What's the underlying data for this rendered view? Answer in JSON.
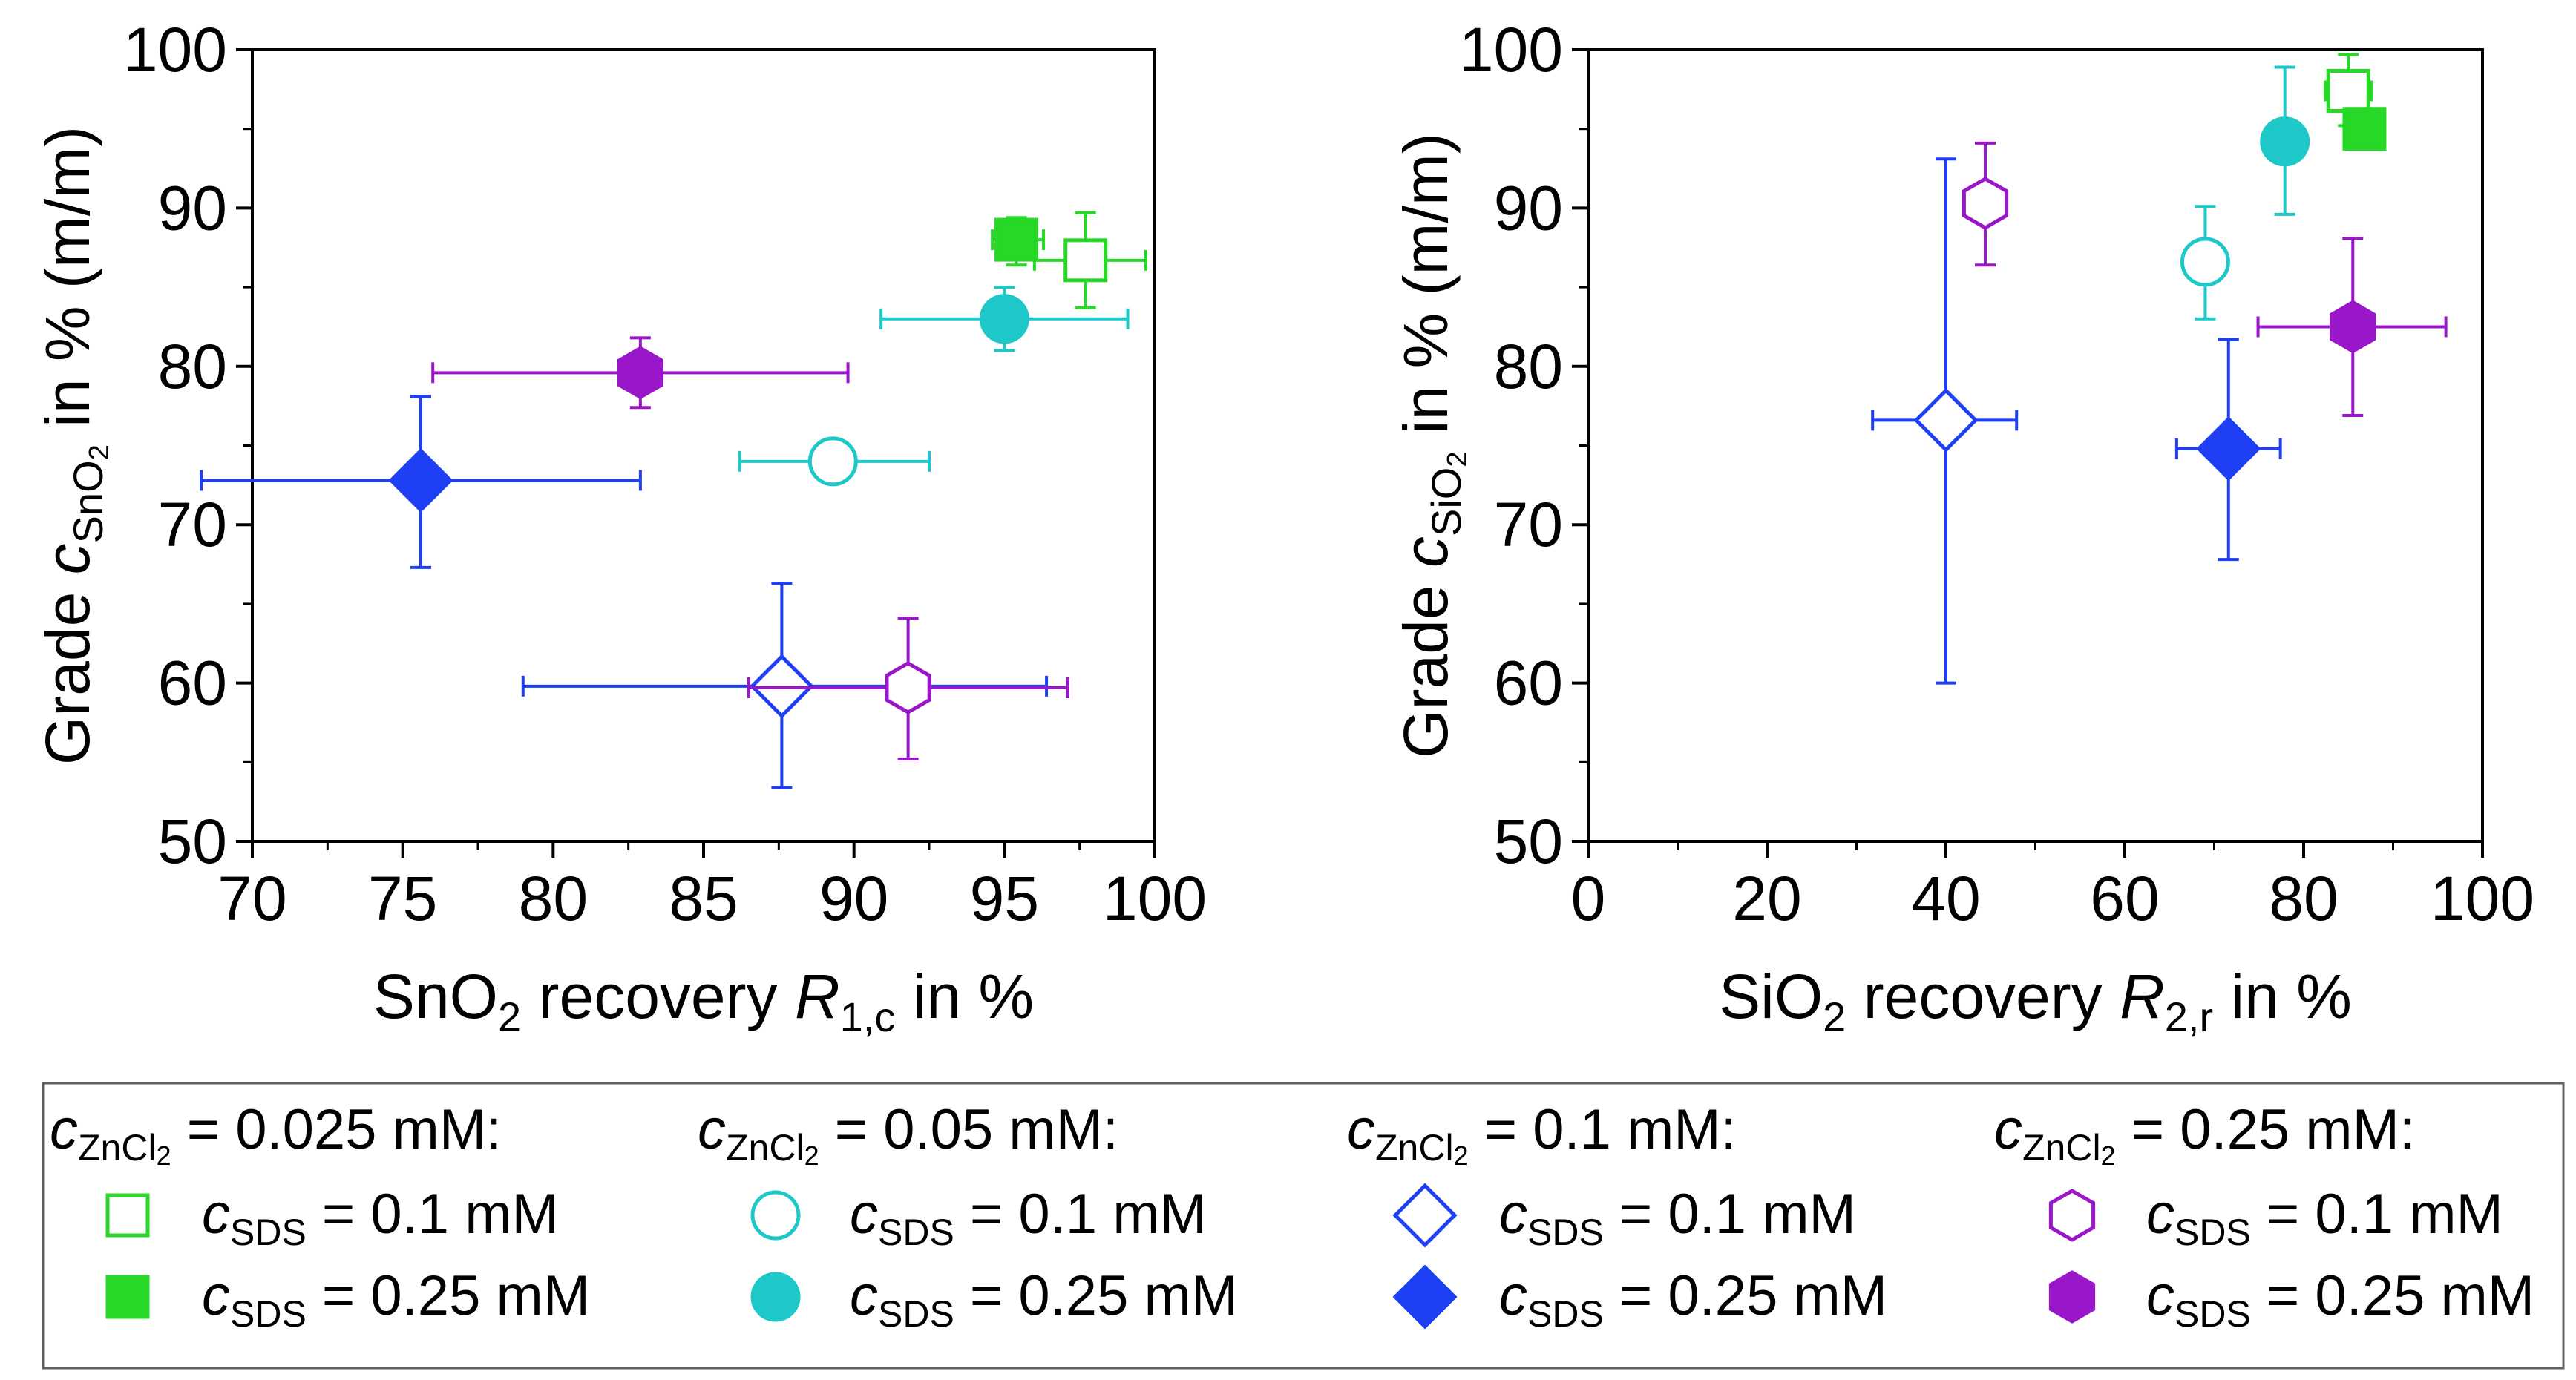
{
  "chart_data": [
    {
      "type": "scatter",
      "id": "sno2",
      "xlabel": {
        "prefix": "SnO",
        "sub1": "2",
        "mid": " recovery ",
        "sym": "R",
        "sub2": "1,c",
        "suffix": " in %"
      },
      "ylabel": {
        "prefix": "Grade ",
        "sym": "c",
        "sub": "SnO",
        "subsub": "2",
        "suffix": " in % (m/m)"
      },
      "xlim": [
        70,
        100
      ],
      "ylim": [
        50,
        100
      ],
      "xticks": [
        70,
        75,
        80,
        85,
        90,
        95,
        100
      ],
      "yticks": [
        50,
        60,
        70,
        80,
        90,
        100
      ],
      "points": [
        {
          "series": "s1",
          "x": 97.7,
          "y": 86.7,
          "xerr": [
            96.0,
            99.7
          ],
          "yerr": [
            83.7,
            89.7
          ]
        },
        {
          "series": "s2",
          "x": 95.4,
          "y": 88.0,
          "xerr": [
            94.6,
            96.3
          ],
          "yerr": [
            86.4,
            89.4
          ]
        },
        {
          "series": "s3",
          "x": 89.3,
          "y": 74.0,
          "xerr": [
            86.2,
            92.5
          ],
          "yerr": [
            72.8,
            75.2
          ]
        },
        {
          "series": "s4",
          "x": 95.0,
          "y": 83.0,
          "xerr": [
            90.9,
            99.1
          ],
          "yerr": [
            81.0,
            85.0
          ]
        },
        {
          "series": "s5",
          "x": 87.6,
          "y": 59.8,
          "xerr": [
            79.0,
            96.4
          ],
          "yerr": [
            53.4,
            66.3
          ]
        },
        {
          "series": "s6",
          "x": 75.6,
          "y": 72.8,
          "xerr": [
            68.3,
            82.9
          ],
          "yerr": [
            67.3,
            78.1
          ]
        },
        {
          "series": "s7",
          "x": 91.8,
          "y": 59.7,
          "xerr": [
            86.5,
            97.1
          ],
          "yerr": [
            55.2,
            64.1
          ]
        },
        {
          "series": "s8",
          "x": 82.9,
          "y": 79.6,
          "xerr": [
            76.0,
            89.8
          ],
          "yerr": [
            77.4,
            81.8
          ]
        }
      ]
    },
    {
      "type": "scatter",
      "id": "sio2",
      "xlabel": {
        "prefix": "SiO",
        "sub1": "2",
        "mid": " recovery ",
        "sym": "R",
        "sub2": "2,r",
        "suffix": " in %"
      },
      "ylabel": {
        "prefix": "Grade ",
        "sym": "c",
        "sub": "SiO",
        "subsub": "2",
        "suffix": " in % (m/m)"
      },
      "xlim": [
        0,
        100
      ],
      "ylim": [
        50,
        100
      ],
      "xticks": [
        0,
        20,
        40,
        60,
        80,
        100
      ],
      "yticks": [
        50,
        60,
        70,
        80,
        90,
        100
      ],
      "points": [
        {
          "series": "s1",
          "x": 85.0,
          "y": 97.4,
          "xerr": [
            82.4,
            87.6
          ],
          "yerr": [
            95.2,
            99.7
          ]
        },
        {
          "series": "s2",
          "x": 86.8,
          "y": 95.0,
          "xerr": [
            86.0,
            87.6
          ],
          "yerr": [
            94.2,
            95.8
          ]
        },
        {
          "series": "s3",
          "x": 69.0,
          "y": 86.6,
          "xerr": [
            67.4,
            70.6
          ],
          "yerr": [
            83.0,
            90.1
          ]
        },
        {
          "series": "s4",
          "x": 77.9,
          "y": 94.2,
          "xerr": [
            76.8,
            79.0
          ],
          "yerr": [
            89.6,
            98.9
          ]
        },
        {
          "series": "s5",
          "x": 40.0,
          "y": 76.6,
          "xerr": [
            31.8,
            47.9
          ],
          "yerr": [
            60.0,
            93.1
          ]
        },
        {
          "series": "s6",
          "x": 71.6,
          "y": 74.8,
          "xerr": [
            65.8,
            77.4
          ],
          "yerr": [
            67.8,
            81.7
          ]
        },
        {
          "series": "s7",
          "x": 44.4,
          "y": 90.3,
          "xerr": [
            42.6,
            46.2
          ],
          "yerr": [
            86.4,
            94.1
          ]
        },
        {
          "series": "s8",
          "x": 85.5,
          "y": 82.5,
          "xerr": [
            74.9,
            95.9
          ],
          "yerr": [
            76.9,
            88.1
          ]
        }
      ]
    }
  ],
  "series": {
    "s1": {
      "marker": "square",
      "filled": false,
      "color": "#27d827"
    },
    "s2": {
      "marker": "square",
      "filled": true,
      "color": "#27d827"
    },
    "s3": {
      "marker": "circle",
      "filled": false,
      "color": "#1ec8c8"
    },
    "s4": {
      "marker": "circle",
      "filled": true,
      "color": "#1ec8c8"
    },
    "s5": {
      "marker": "diamond",
      "filled": false,
      "color": "#1f3ff5"
    },
    "s6": {
      "marker": "diamond",
      "filled": true,
      "color": "#1f3ff5"
    },
    "s7": {
      "marker": "hexagon",
      "filled": false,
      "color": "#9a16c9"
    },
    "s8": {
      "marker": "hexagon",
      "filled": true,
      "color": "#9a16c9"
    }
  },
  "legend": {
    "groups": [
      {
        "head_sym": "c",
        "head_sub": "ZnCl",
        "head_subsub": "2",
        "head_value": " = 0.025 mM:",
        "items": [
          {
            "series": "s1",
            "sym": "c",
            "sub": "SDS",
            "value": " = 0.1 mM"
          },
          {
            "series": "s2",
            "sym": "c",
            "sub": "SDS",
            "value": " = 0.25 mM"
          }
        ]
      },
      {
        "head_sym": "c",
        "head_sub": "ZnCl",
        "head_subsub": "2",
        "head_value": " = 0.05 mM:",
        "items": [
          {
            "series": "s3",
            "sym": "c",
            "sub": "SDS",
            "value": " = 0.1 mM"
          },
          {
            "series": "s4",
            "sym": "c",
            "sub": "SDS",
            "value": " = 0.25 mM"
          }
        ]
      },
      {
        "head_sym": "c",
        "head_sub": "ZnCl",
        "head_subsub": "2",
        "head_value": " = 0.1 mM:",
        "items": [
          {
            "series": "s5",
            "sym": "c",
            "sub": "SDS",
            "value": " = 0.1 mM"
          },
          {
            "series": "s6",
            "sym": "c",
            "sub": "SDS",
            "value": " = 0.25 mM"
          }
        ]
      },
      {
        "head_sym": "c",
        "head_sub": "ZnCl",
        "head_subsub": "2",
        "head_value": " = 0.25 mM:",
        "items": [
          {
            "series": "s7",
            "sym": "c",
            "sub": "SDS",
            "value": " = 0.1 mM"
          },
          {
            "series": "s8",
            "sym": "c",
            "sub": "SDS",
            "value": " = 0.25 mM"
          }
        ]
      }
    ]
  }
}
